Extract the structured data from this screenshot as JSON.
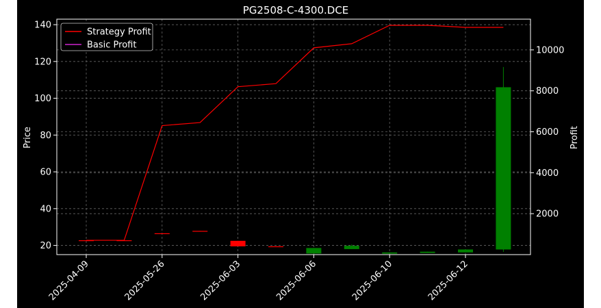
{
  "chart_data": {
    "type": "candlestick",
    "title": "PG2508-C-4300.DCE",
    "ylabel_left": "Price",
    "ylabel_right": "Profit",
    "xlabel": "",
    "ylim_left": [
      15,
      143
    ],
    "ylim_right": [
      0,
      11500
    ],
    "yticks_left": [
      20,
      40,
      60,
      80,
      100,
      120,
      140
    ],
    "yticks_right": [
      2000,
      4000,
      6000,
      8000,
      10000
    ],
    "x_tick_labels": [
      "2025-04-09",
      "2025-05-26",
      "2025-06-03",
      "2025-06-06",
      "2025-06-10",
      "2025-06-12"
    ],
    "x_tick_positions": [
      0,
      2,
      4,
      6,
      8,
      10
    ],
    "grid": true,
    "legend_position": "top-left",
    "legend": [
      {
        "label": "Strategy Profit",
        "color": "#ff0000"
      },
      {
        "label": "Basic Profit",
        "color": "#cc22cc"
      }
    ],
    "candles": [
      {
        "i": 0,
        "open": 22.8,
        "close": 22.8,
        "high": 22.8,
        "low": 22.8
      },
      {
        "i": 1,
        "open": 22.8,
        "close": 22.8,
        "high": 22.8,
        "low": 22.8
      },
      {
        "i": 2,
        "open": 26.3,
        "close": 26.6,
        "high": 26.6,
        "low": 26.3
      },
      {
        "i": 3,
        "open": 27.6,
        "close": 27.9,
        "high": 27.9,
        "low": 27.6
      },
      {
        "i": 4,
        "open": 19.5,
        "close": 22.5,
        "high": 22.5,
        "low": 19.5
      },
      {
        "i": 5,
        "open": 19.2,
        "close": 19.5,
        "high": 19.5,
        "low": 19.2
      },
      {
        "i": 6,
        "open": 18.6,
        "close": 15.6,
        "high": 18.6,
        "low": 15.6
      },
      {
        "i": 7,
        "open": 19.8,
        "close": 18.0,
        "high": 20.5,
        "low": 18.0
      },
      {
        "i": 8,
        "open": 16.2,
        "close": 15.5,
        "high": 16.2,
        "low": 15.5
      },
      {
        "i": 9,
        "open": 16.6,
        "close": 15.9,
        "high": 16.6,
        "low": 15.9
      },
      {
        "i": 10,
        "open": 17.8,
        "close": 16.2,
        "high": 17.8,
        "low": 16.2
      },
      {
        "i": 11,
        "open": 106.0,
        "close": 17.8,
        "high": 117.0,
        "low": 16.5
      }
    ],
    "candle_colors": {
      "up": "#ff0000",
      "down": "#008000"
    },
    "series": [
      {
        "name": "Strategy Profit",
        "color": "#ff0000",
        "values": [
          700,
          700,
          6300,
          6450,
          8200,
          8350,
          10100,
          10300,
          11200,
          11200,
          11100,
          11100
        ]
      },
      {
        "name": "Basic Profit",
        "color": "#cc22cc",
        "values": []
      }
    ]
  }
}
